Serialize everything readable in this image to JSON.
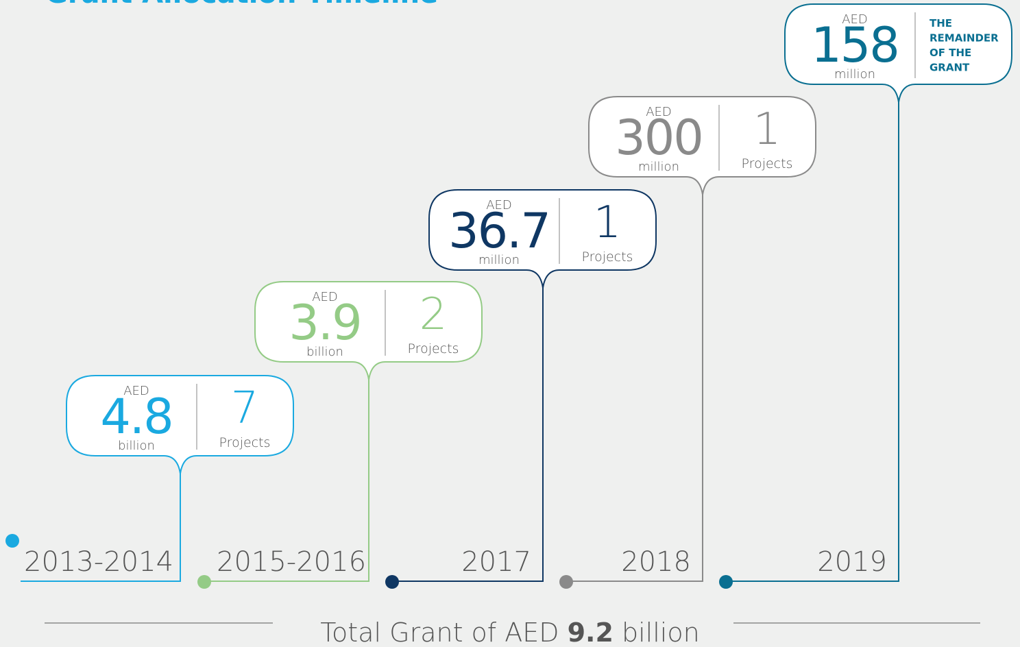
{
  "title": "Grant Allocation Timeline",
  "items": [
    {
      "period": "2013-2014",
      "currency": "AED",
      "amount": "4.8",
      "unit": "billion",
      "count": "7",
      "count_label": "Projects",
      "color": "#1aa9e0"
    },
    {
      "period": "2015-2016",
      "currency": "AED",
      "amount": "3.9",
      "unit": "billion",
      "count": "2",
      "count_label": "Projects",
      "color": "#94cb86"
    },
    {
      "period": "2017",
      "currency": "AED",
      "amount": "36.7",
      "unit": "million",
      "count": "1",
      "count_label": "Projects",
      "color": "#0f3763"
    },
    {
      "period": "2018",
      "currency": "AED",
      "amount": "300",
      "unit": "million",
      "count": "1",
      "count_label": "Projects",
      "color": "#8a8a8a"
    },
    {
      "period": "2019",
      "currency": "AED",
      "amount": "158",
      "unit": "million",
      "note": [
        "THE",
        "REMAINDER",
        "OF THE",
        "GRANT"
      ],
      "color": "#0a6f91"
    }
  ],
  "footer": {
    "prefix": "Total Grant of AED ",
    "amount": "9.2",
    "suffix": " billion"
  }
}
